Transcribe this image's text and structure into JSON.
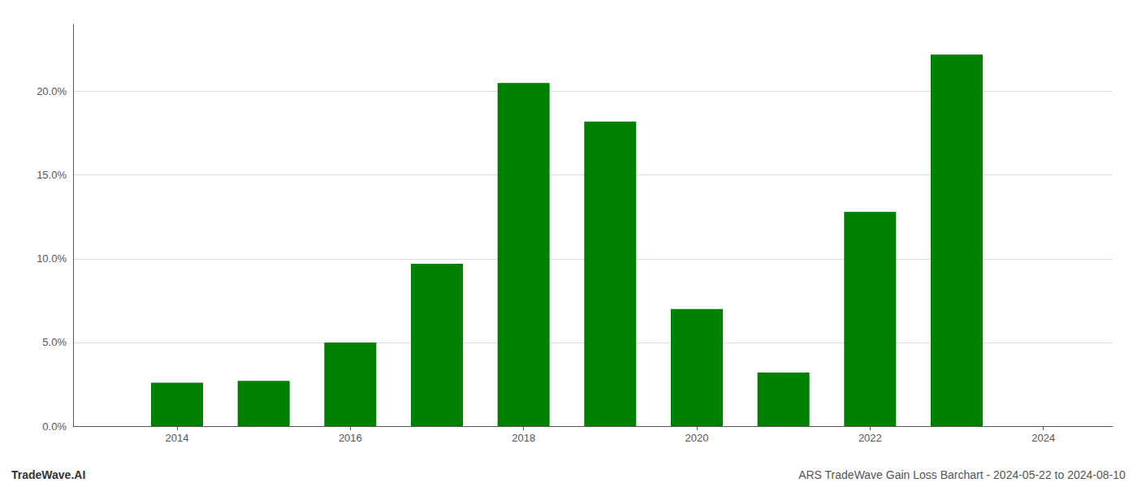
{
  "chart_data": {
    "type": "bar",
    "x": [
      2014,
      2015,
      2016,
      2017,
      2018,
      2019,
      2020,
      2021,
      2022,
      2023
    ],
    "values": [
      2.6,
      2.7,
      5.0,
      9.7,
      20.5,
      18.2,
      7.0,
      3.2,
      12.8,
      22.2
    ],
    "color": "#008000",
    "xlim": [
      2012.8,
      2024.8
    ],
    "xticks": [
      2014,
      2016,
      2018,
      2020,
      2022,
      2024
    ],
    "ylim": [
      0.0,
      24.0
    ],
    "yticks": [
      {
        "value": 0.0,
        "label": "0.0%"
      },
      {
        "value": 5.0,
        "label": "5.0%"
      },
      {
        "value": 10.0,
        "label": "10.0%"
      },
      {
        "value": 15.0,
        "label": "15.0%"
      },
      {
        "value": 20.0,
        "label": "20.0%"
      }
    ],
    "grid": true,
    "annotations": [
      "TradeWave.AI",
      "ARS TradeWave Gain Loss Barchart - 2024-05-22 to 2024-08-10"
    ]
  }
}
